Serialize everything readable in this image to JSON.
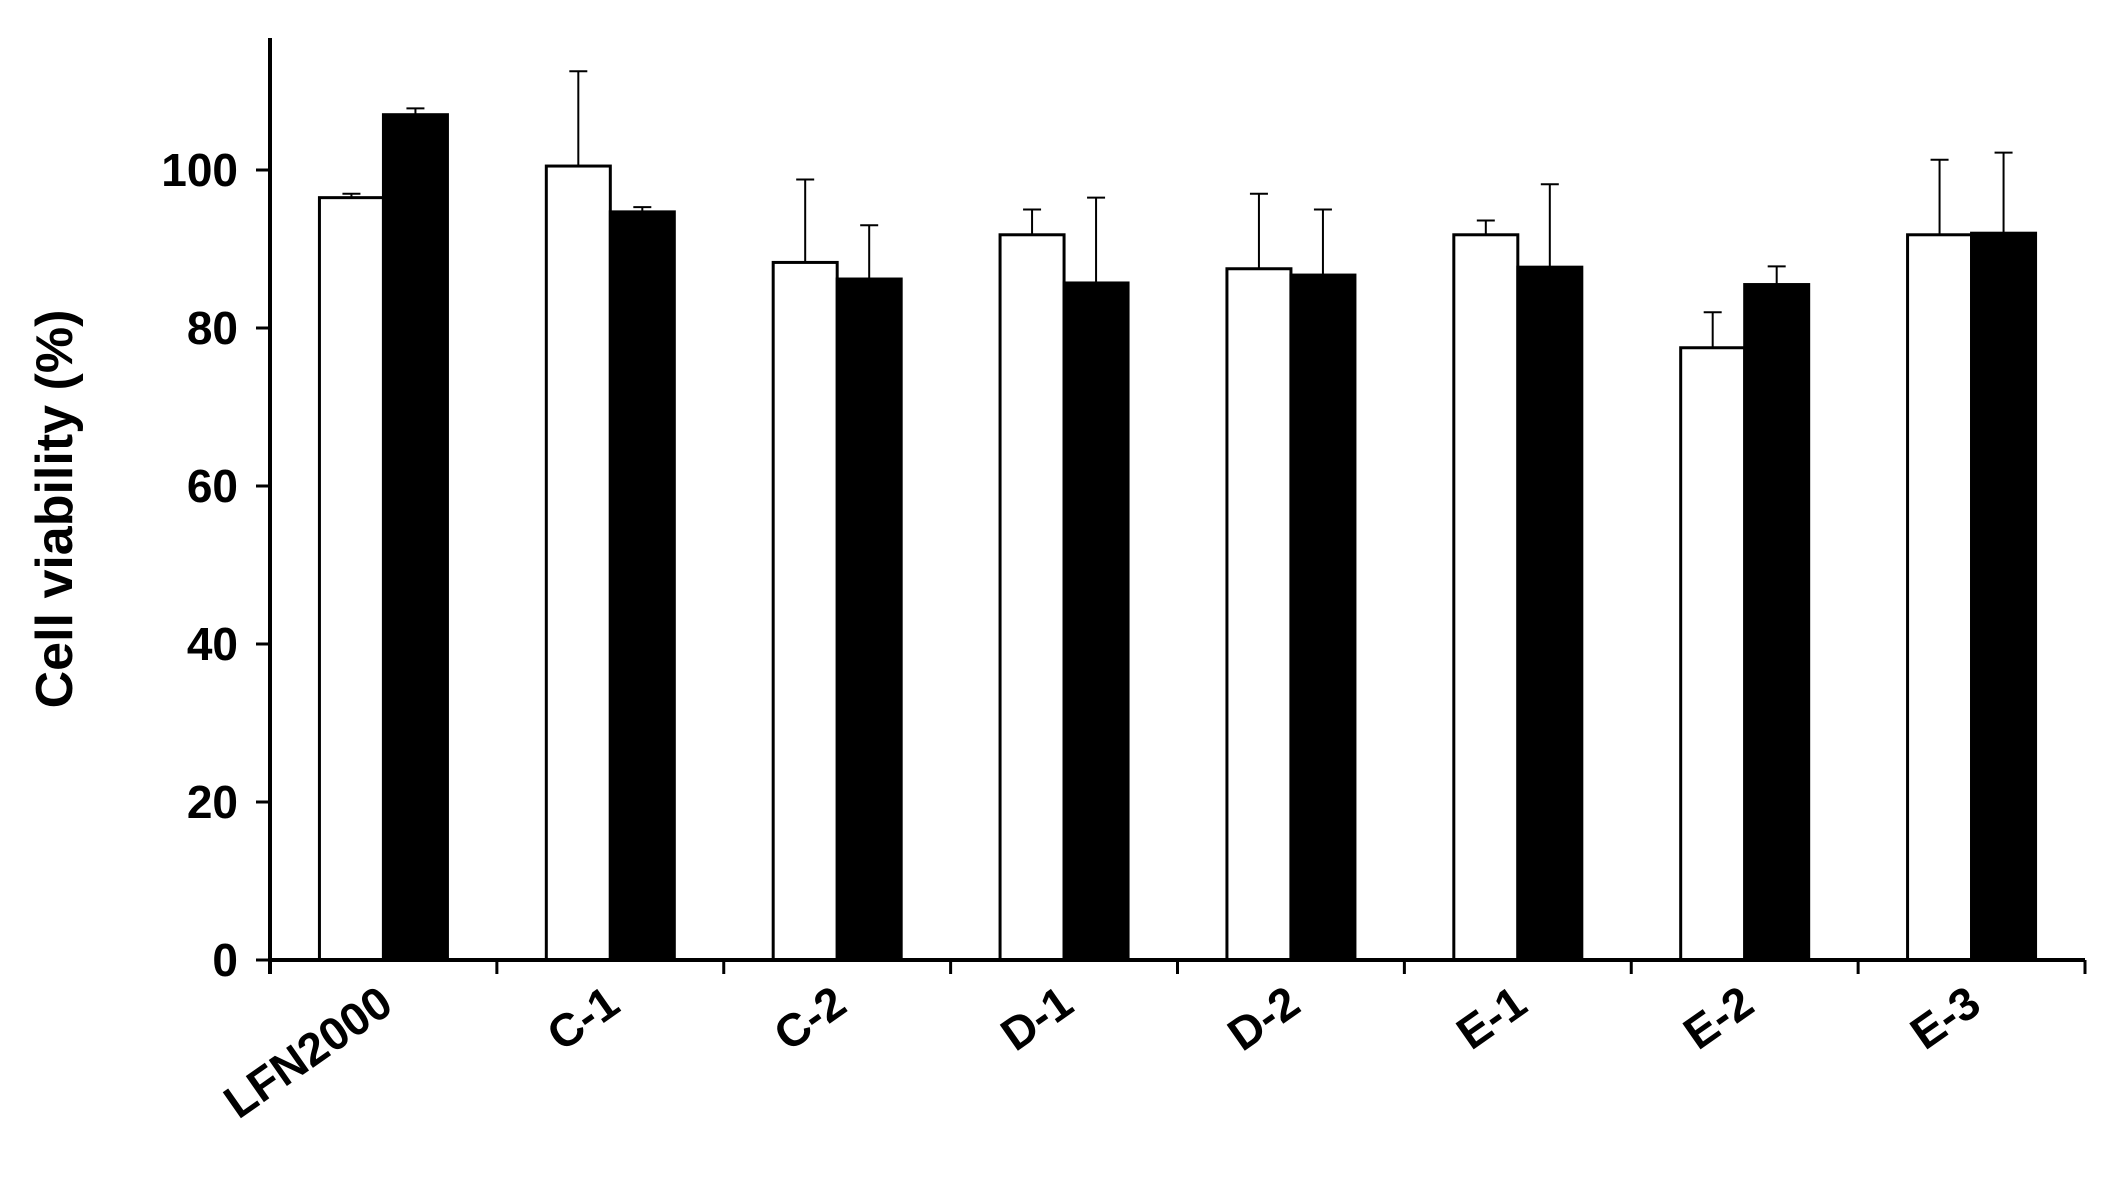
{
  "chart_data": {
    "type": "bar",
    "title": "",
    "xlabel": "",
    "ylabel": "Cell viability (%)",
    "ylim": [
      0,
      117
    ],
    "yticks": [
      0,
      20,
      40,
      60,
      80,
      100
    ],
    "grid": false,
    "legend": "none",
    "categories": [
      "LFN2000",
      "C-1",
      "C-2",
      "D-1",
      "D-2",
      "E-1",
      "E-2",
      "E-3"
    ],
    "series": [
      {
        "fill": "#ffffff",
        "values": [
          96.5,
          100.5,
          88.3,
          91.8,
          87.5,
          91.8,
          77.5,
          91.8
        ],
        "errors": [
          0.5,
          12.0,
          10.5,
          3.2,
          9.5,
          1.8,
          4.5,
          9.5
        ]
      },
      {
        "fill": "#000000",
        "values": [
          107.0,
          94.7,
          86.2,
          85.7,
          86.7,
          87.7,
          85.5,
          92.0
        ],
        "errors": [
          0.8,
          0.6,
          6.8,
          10.8,
          8.3,
          10.5,
          2.3,
          10.2
        ]
      }
    ]
  }
}
